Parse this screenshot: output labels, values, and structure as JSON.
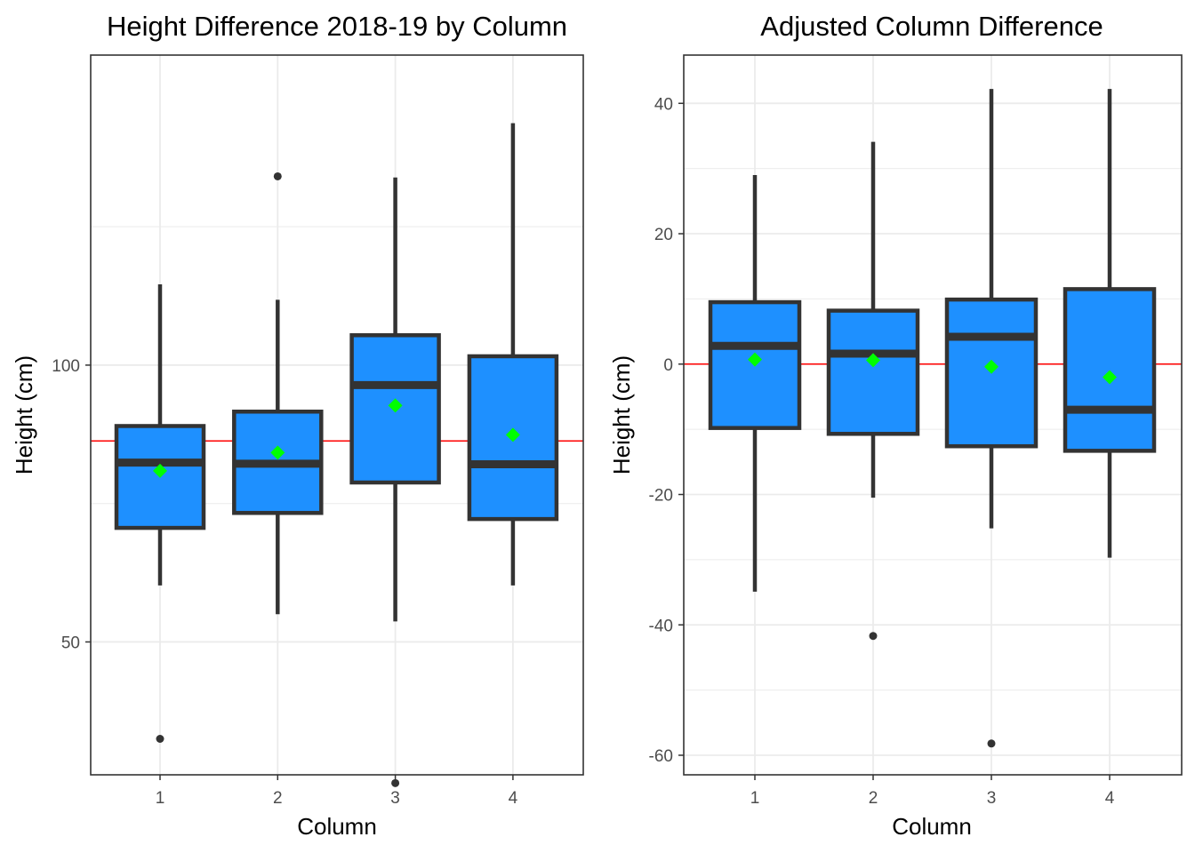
{
  "chart_data": [
    {
      "type": "box",
      "title": "Height Difference 2018-19 by Column",
      "xlabel": "Column",
      "ylabel": "Height (cm)",
      "categories": [
        "1",
        "2",
        "3",
        "4"
      ],
      "ylim": [
        26,
        156
      ],
      "y_ticks": [
        50,
        100
      ],
      "y_tick_labels": [
        "50",
        "100"
      ],
      "grid": true,
      "reference_line": {
        "y": 86.3,
        "color": "#ff0000"
      },
      "box_fill": "#1e90ff",
      "box_outline": "#333333",
      "mean_marker_color": "#00ff00",
      "boxes": [
        {
          "category": "1",
          "whisker_low": 60.2,
          "q1": 70.6,
          "median": 82.4,
          "q3": 89.0,
          "whisker_high": 114.6,
          "mean": 80.9,
          "outliers": [
            32.5
          ]
        },
        {
          "category": "2",
          "whisker_low": 55.0,
          "q1": 73.3,
          "median": 82.2,
          "q3": 91.6,
          "whisker_high": 111.8,
          "mean": 84.2,
          "outliers": [
            134.1
          ]
        },
        {
          "category": "3",
          "whisker_low": 53.7,
          "q1": 78.8,
          "median": 96.4,
          "q3": 105.4,
          "whisker_high": 133.9,
          "mean": 92.7,
          "outliers": [
            24.5
          ]
        },
        {
          "category": "4",
          "whisker_low": 60.2,
          "q1": 72.2,
          "median": 82.1,
          "q3": 101.6,
          "whisker_high": 143.7,
          "mean": 87.4,
          "outliers": []
        }
      ]
    },
    {
      "type": "box",
      "title": "Adjusted Column Difference",
      "xlabel": "Column",
      "ylabel": "Height (cm)",
      "categories": [
        "1",
        "2",
        "3",
        "4"
      ],
      "ylim": [
        -63,
        47.4
      ],
      "y_ticks": [
        -60,
        -40,
        -20,
        0,
        20,
        40
      ],
      "y_tick_labels": [
        "-60",
        "-40",
        "-20",
        "0",
        "20",
        "40"
      ],
      "grid": true,
      "reference_line": {
        "y": 0,
        "color": "#ff0000"
      },
      "box_fill": "#1e90ff",
      "box_outline": "#333333",
      "mean_marker_color": "#00ff00",
      "boxes": [
        {
          "category": "1",
          "whisker_low": -34.9,
          "q1": -9.8,
          "median": 2.8,
          "q3": 9.5,
          "whisker_high": 29.0,
          "mean": 0.7,
          "outliers": []
        },
        {
          "category": "2",
          "whisker_low": -20.5,
          "q1": -10.7,
          "median": 1.6,
          "q3": 8.2,
          "whisker_high": 34.1,
          "mean": 0.6,
          "outliers": [
            -41.7
          ]
        },
        {
          "category": "3",
          "whisker_low": -25.2,
          "q1": -12.6,
          "median": 4.2,
          "q3": 9.9,
          "whisker_high": 42.2,
          "mean": -0.4,
          "outliers": [
            -58.2
          ]
        },
        {
          "category": "4",
          "whisker_low": -29.7,
          "q1": -13.3,
          "median": -7.0,
          "q3": 11.5,
          "whisker_high": 42.2,
          "mean": -2.0,
          "outliers": []
        }
      ]
    }
  ]
}
